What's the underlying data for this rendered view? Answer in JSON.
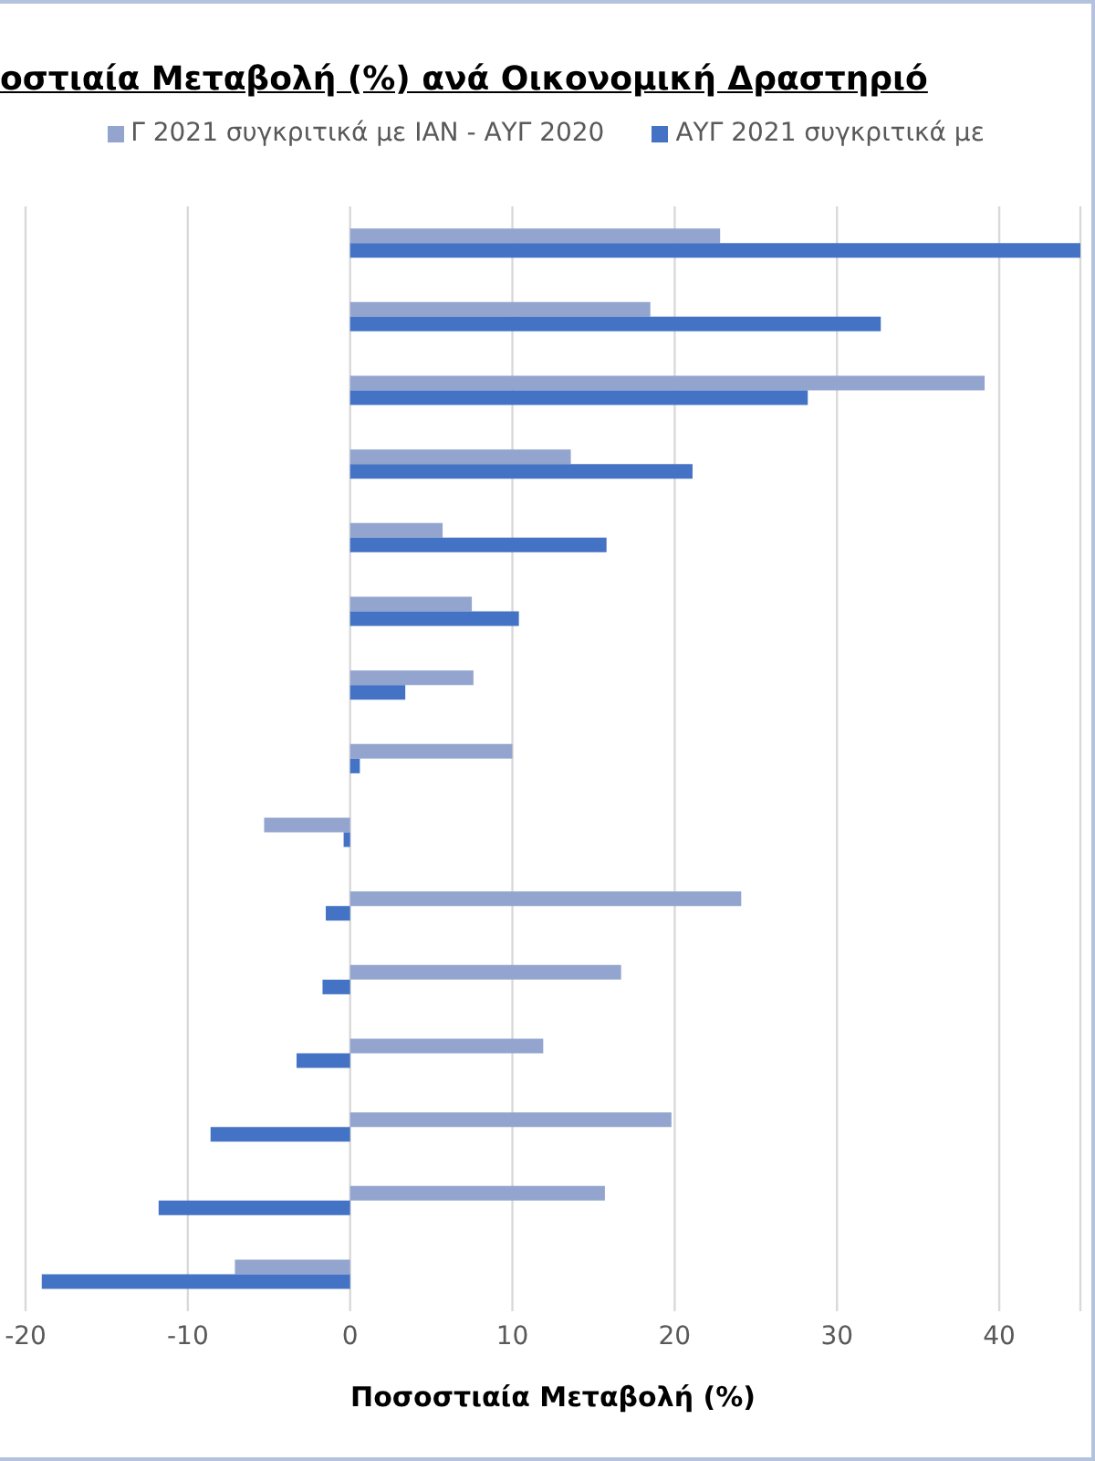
{
  "chart_data": {
    "type": "bar",
    "orientation": "horizontal",
    "title": "οστιαία Μεταβολή (%) ανά Οικονομική Δραστηριό",
    "xlabel": "Ποσοστιαία Μεταβολή (%)",
    "categories": [
      null,
      null,
      null,
      null,
      null,
      null,
      null,
      null,
      null,
      null,
      null,
      null,
      null,
      null,
      null
    ],
    "series": [
      {
        "name": "Γ 2021 συγκριτικά με ΙΑΝ - ΑΥΓ 2020",
        "color": "#93a5cf",
        "values": [
          22.8,
          18.5,
          39.1,
          13.6,
          5.7,
          7.5,
          7.6,
          10.0,
          -5.3,
          24.1,
          16.7,
          11.9,
          19.8,
          15.7,
          -7.1
        ]
      },
      {
        "name": "ΑΥΓ 2021 συγκριτικά με",
        "color": "#4472c4",
        "values": [
          45,
          32.7,
          28.2,
          21.1,
          15.8,
          10.4,
          3.4,
          0.6,
          -0.4,
          -1.5,
          -1.7,
          -3.3,
          -8.6,
          -11.8,
          -19.0
        ]
      }
    ],
    "xlim": [
      -20,
      45
    ],
    "xticks": [
      -20,
      -10,
      0,
      10,
      20,
      30,
      40
    ],
    "grid": "x",
    "legend": "top",
    "tick_labels": "x"
  }
}
